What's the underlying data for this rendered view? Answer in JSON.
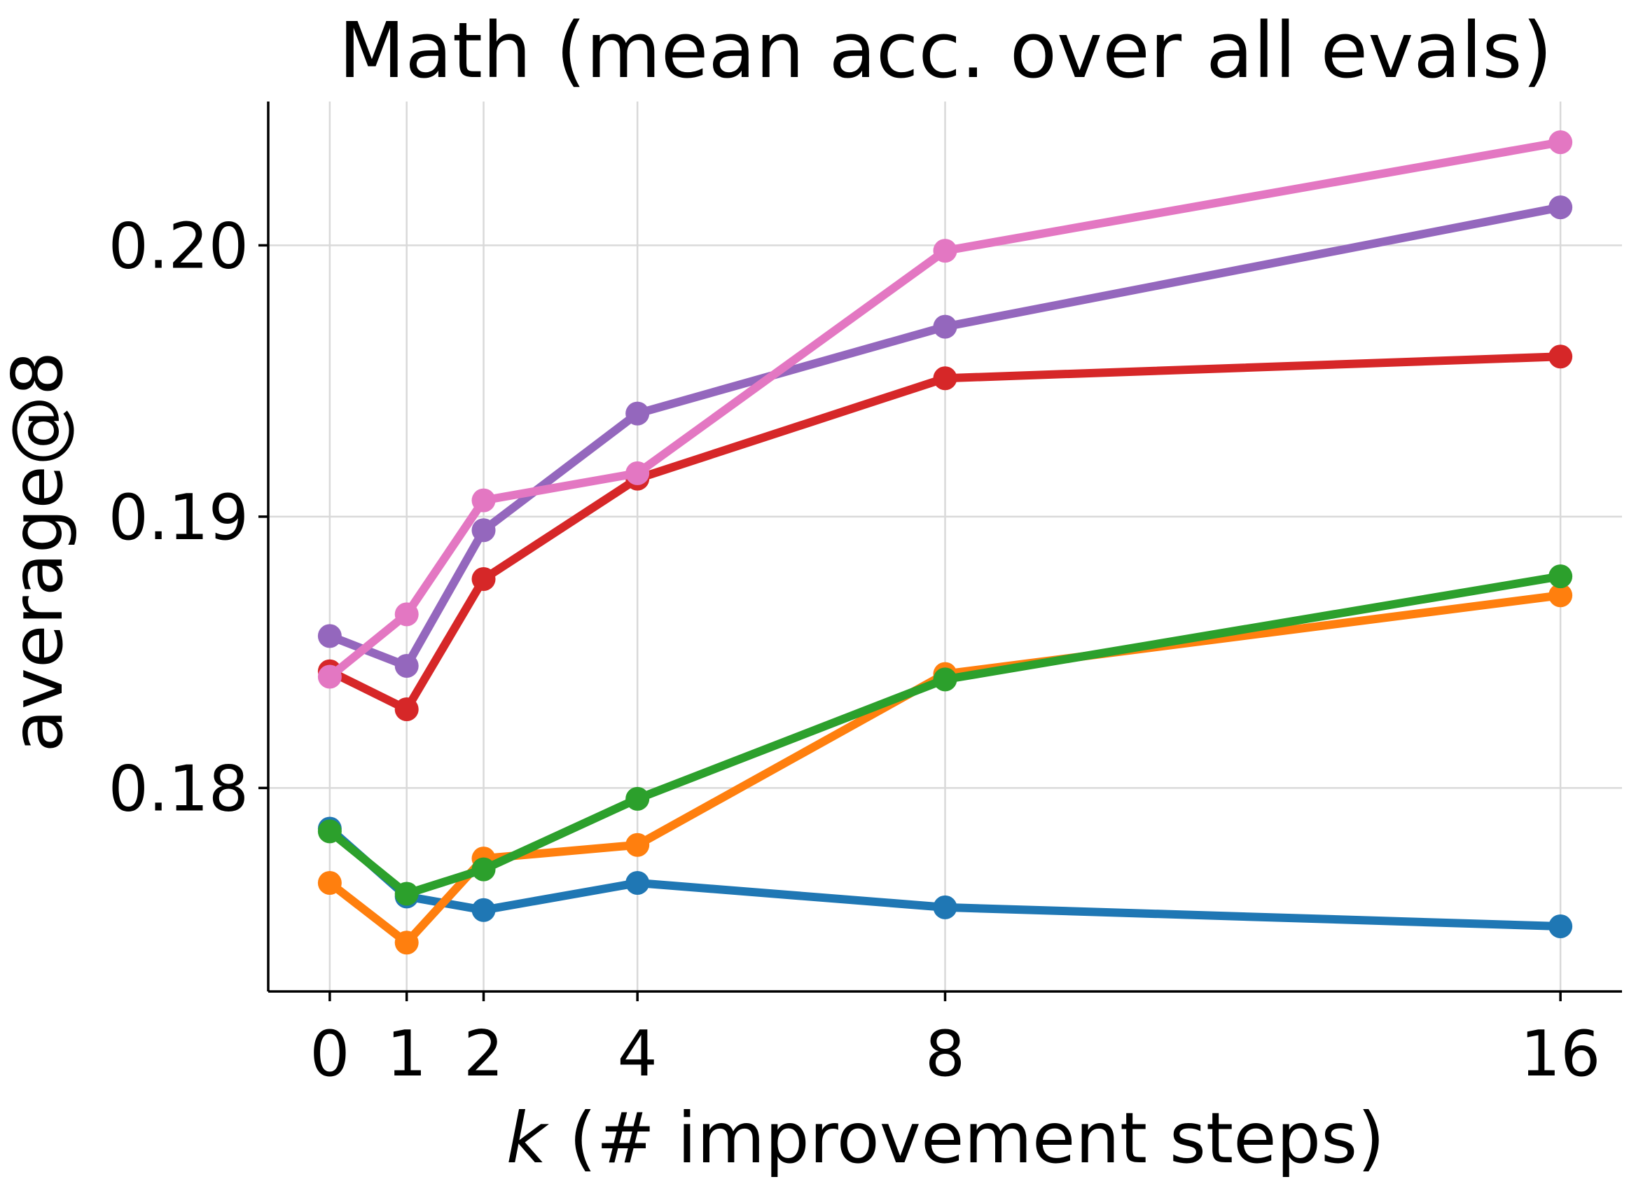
{
  "chart_data": {
    "type": "line",
    "title": "Math (mean acc. over all evals)",
    "xlabel_var": "k",
    "xlabel_rest": " (# improvement steps)",
    "ylabel": "average@8",
    "x": [
      0,
      1,
      2,
      4,
      8,
      16
    ],
    "xticks": [
      "0",
      "1",
      "2",
      "4",
      "8",
      "16"
    ],
    "yticks": [
      {
        "value": 0.18,
        "label": "0.18"
      },
      {
        "value": 0.19,
        "label": "0.19"
      },
      {
        "value": 0.2,
        "label": "0.20"
      }
    ],
    "xlim": [
      -0.8,
      16.8
    ],
    "ylim": [
      0.1725,
      0.2053
    ],
    "grid": true,
    "series": [
      {
        "name": "blue",
        "color": "#1f77b4",
        "values": [
          0.1785,
          0.176,
          0.1755,
          0.1765,
          0.1756,
          0.1749
        ]
      },
      {
        "name": "orange",
        "color": "#ff7f0e",
        "values": [
          0.1765,
          0.1743,
          0.1774,
          0.1779,
          0.1842,
          0.1871
        ]
      },
      {
        "name": "green",
        "color": "#2ca02c",
        "values": [
          0.1784,
          0.1761,
          0.177,
          0.1796,
          0.184,
          0.1878
        ]
      },
      {
        "name": "red",
        "color": "#d62728",
        "values": [
          0.1843,
          0.1829,
          0.1877,
          0.1914,
          0.1951,
          0.1959
        ]
      },
      {
        "name": "purple",
        "color": "#9467bd",
        "values": [
          0.1856,
          0.1845,
          0.1895,
          0.1938,
          0.197,
          0.2014
        ]
      },
      {
        "name": "pink",
        "color": "#e377c2",
        "values": [
          0.1841,
          0.1864,
          0.1906,
          0.1916,
          0.1998,
          0.2038
        ]
      }
    ]
  }
}
